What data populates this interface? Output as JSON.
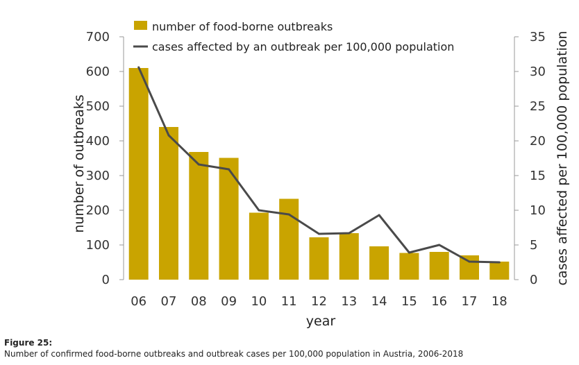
{
  "chart_data": {
    "type": "bar",
    "categories": [
      "06",
      "07",
      "08",
      "09",
      "10",
      "11",
      "12",
      "13",
      "14",
      "15",
      "16",
      "17",
      "18"
    ],
    "series": [
      {
        "name": "number of food-borne outbreaks",
        "type": "bar",
        "axis": "left",
        "values": [
          610,
          440,
          368,
          351,
          193,
          233,
          122,
          134,
          96,
          77,
          80,
          70,
          52
        ],
        "color": "#c9a400"
      },
      {
        "name": "cases affected by an outbreak per 100,000 population",
        "type": "line",
        "axis": "right",
        "values": [
          30.6,
          20.8,
          16.6,
          15.9,
          10.0,
          9.4,
          6.6,
          6.7,
          9.3,
          3.9,
          5.0,
          2.6,
          2.5
        ],
        "color": "#4a4a4a"
      }
    ],
    "xlabel": "year",
    "ylabel": "number of outbreaks",
    "y2label": "cases affected per 100,000 population",
    "ylim": [
      0,
      700
    ],
    "yticks": [
      "0",
      "100",
      "200",
      "300",
      "400",
      "500",
      "600",
      "700"
    ],
    "y2lim": [
      0,
      35
    ],
    "y2ticks": [
      "0",
      "5",
      "10",
      "15",
      "20",
      "25",
      "30",
      "35"
    ],
    "legend": "top-left"
  },
  "caption": {
    "title": "Figure 25:",
    "text": "Number of confirmed food-borne outbreaks and outbreak cases per 100,000 population in Austria, 2006-2018"
  }
}
